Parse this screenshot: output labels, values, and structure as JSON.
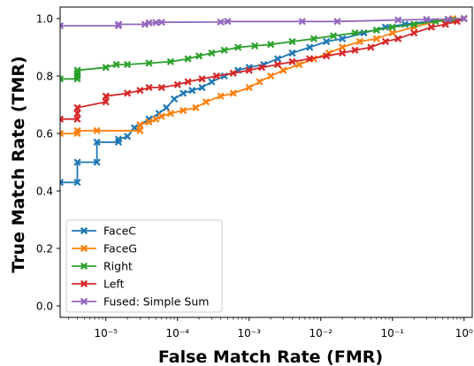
{
  "chart_data": {
    "type": "line",
    "xlabel": "False Match Rate (FMR)",
    "ylabel": "True Match Rate (TMR)",
    "xscale": "log",
    "xlim": [
      2.3e-06,
      1.3
    ],
    "ylim": [
      -0.04,
      1.04
    ],
    "x_ticks": [
      1e-05,
      0.0001,
      0.001,
      0.01,
      0.1,
      1
    ],
    "x_tick_labels": [
      "10⁻⁵",
      "10⁻⁴",
      "10⁻³",
      "10⁻²",
      "10⁻¹",
      "10⁰"
    ],
    "y_ticks": [
      0.0,
      0.2,
      0.4,
      0.6,
      0.8,
      1.0
    ],
    "y_tick_labels": [
      "0.0",
      "0.2",
      "0.4",
      "0.6",
      "0.8",
      "1.0"
    ],
    "grid": false,
    "legend_position": "lower-left",
    "marker": "x",
    "series": [
      {
        "name": "FaceC",
        "color": "#1f77b4",
        "points": [
          [
            2.3e-06,
            0.43
          ],
          [
            4e-06,
            0.43
          ],
          [
            4e-06,
            0.5
          ],
          [
            7.5e-06,
            0.5
          ],
          [
            7.5e-06,
            0.57
          ],
          [
            1.5e-05,
            0.57
          ],
          [
            1.5e-05,
            0.58
          ],
          [
            2e-05,
            0.59
          ],
          [
            2.5e-05,
            0.62
          ],
          [
            3e-05,
            0.63
          ],
          [
            4e-05,
            0.65
          ],
          [
            5.5e-05,
            0.67
          ],
          [
            7e-05,
            0.69
          ],
          [
            9e-05,
            0.72
          ],
          [
            0.00012,
            0.74
          ],
          [
            0.00016,
            0.75
          ],
          [
            0.00022,
            0.76
          ],
          [
            0.0003,
            0.78
          ],
          [
            0.00045,
            0.8
          ],
          [
            0.0007,
            0.82
          ],
          [
            0.001,
            0.83
          ],
          [
            0.0016,
            0.84
          ],
          [
            0.0025,
            0.86
          ],
          [
            0.004,
            0.88
          ],
          [
            0.007,
            0.9
          ],
          [
            0.012,
            0.92
          ],
          [
            0.02,
            0.93
          ],
          [
            0.04,
            0.95
          ],
          [
            0.08,
            0.97
          ],
          [
            0.15,
            0.98
          ],
          [
            0.3,
            0.99
          ],
          [
            0.6,
            0.995
          ],
          [
            1.0,
            1.0
          ]
        ]
      },
      {
        "name": "FaceG",
        "color": "#ff7f0e",
        "points": [
          [
            2.3e-06,
            0.6
          ],
          [
            4e-06,
            0.6
          ],
          [
            4e-06,
            0.61
          ],
          [
            7.5e-06,
            0.61
          ],
          [
            3e-05,
            0.61
          ],
          [
            3e-05,
            0.63
          ],
          [
            4e-05,
            0.64
          ],
          [
            5e-05,
            0.65
          ],
          [
            6e-05,
            0.66
          ],
          [
            8e-05,
            0.67
          ],
          [
            0.00012,
            0.68
          ],
          [
            0.00018,
            0.69
          ],
          [
            0.00025,
            0.71
          ],
          [
            0.0004,
            0.73
          ],
          [
            0.0006,
            0.74
          ],
          [
            0.001,
            0.76
          ],
          [
            0.0014,
            0.78
          ],
          [
            0.002,
            0.8
          ],
          [
            0.003,
            0.82
          ],
          [
            0.005,
            0.84
          ],
          [
            0.008,
            0.86
          ],
          [
            0.013,
            0.88
          ],
          [
            0.02,
            0.9
          ],
          [
            0.035,
            0.92
          ],
          [
            0.06,
            0.93
          ],
          [
            0.1,
            0.95
          ],
          [
            0.2,
            0.97
          ],
          [
            0.4,
            0.99
          ],
          [
            0.7,
            1.0
          ],
          [
            1.0,
            1.0
          ]
        ]
      },
      {
        "name": "Right",
        "color": "#2ca02c",
        "points": [
          [
            2.3e-06,
            0.79
          ],
          [
            4e-06,
            0.79
          ],
          [
            4e-06,
            0.8
          ],
          [
            4e-06,
            0.81
          ],
          [
            4e-06,
            0.82
          ],
          [
            1e-05,
            0.83
          ],
          [
            1.4e-05,
            0.84
          ],
          [
            2e-05,
            0.84
          ],
          [
            4e-05,
            0.845
          ],
          [
            8e-05,
            0.85
          ],
          [
            0.00014,
            0.86
          ],
          [
            0.0002,
            0.87
          ],
          [
            0.0003,
            0.88
          ],
          [
            0.00045,
            0.89
          ],
          [
            0.0007,
            0.9
          ],
          [
            0.0012,
            0.905
          ],
          [
            0.002,
            0.91
          ],
          [
            0.004,
            0.92
          ],
          [
            0.008,
            0.93
          ],
          [
            0.015,
            0.94
          ],
          [
            0.03,
            0.95
          ],
          [
            0.06,
            0.96
          ],
          [
            0.1,
            0.97
          ],
          [
            0.2,
            0.98
          ],
          [
            0.4,
            0.99
          ],
          [
            0.7,
            0.995
          ],
          [
            1.0,
            1.0
          ]
        ]
      },
      {
        "name": "Left",
        "color": "#d62728",
        "points": [
          [
            2.3e-06,
            0.65
          ],
          [
            4e-06,
            0.65
          ],
          [
            4e-06,
            0.67
          ],
          [
            4e-06,
            0.69
          ],
          [
            1e-05,
            0.71
          ],
          [
            1e-05,
            0.73
          ],
          [
            2e-05,
            0.74
          ],
          [
            3e-05,
            0.75
          ],
          [
            4e-05,
            0.76
          ],
          [
            6e-05,
            0.76
          ],
          [
            0.0001,
            0.77
          ],
          [
            0.00014,
            0.78
          ],
          [
            0.00022,
            0.79
          ],
          [
            0.00035,
            0.8
          ],
          [
            0.0006,
            0.81
          ],
          [
            0.001,
            0.82
          ],
          [
            0.0015,
            0.83
          ],
          [
            0.0025,
            0.84
          ],
          [
            0.004,
            0.85
          ],
          [
            0.007,
            0.86
          ],
          [
            0.012,
            0.87
          ],
          [
            0.02,
            0.88
          ],
          [
            0.03,
            0.89
          ],
          [
            0.05,
            0.9
          ],
          [
            0.08,
            0.92
          ],
          [
            0.12,
            0.93
          ],
          [
            0.2,
            0.95
          ],
          [
            0.35,
            0.97
          ],
          [
            0.55,
            0.98
          ],
          [
            0.8,
            0.99
          ],
          [
            1.0,
            1.0
          ]
        ]
      },
      {
        "name": "Fused: Simple Sum",
        "color": "#9467bd",
        "points": [
          [
            2.3e-06,
            0.975
          ],
          [
            1.5e-05,
            0.975
          ],
          [
            1.5e-05,
            0.98
          ],
          [
            3.5e-05,
            0.98
          ],
          [
            4e-05,
            0.985
          ],
          [
            5e-05,
            0.986
          ],
          [
            6e-05,
            0.987
          ],
          [
            0.0004,
            0.988
          ],
          [
            0.0005,
            0.99
          ],
          [
            0.0055,
            0.99
          ],
          [
            0.017,
            0.99
          ],
          [
            0.12,
            0.995
          ],
          [
            0.3,
            0.997
          ],
          [
            0.6,
            0.998
          ],
          [
            1.0,
            1.0
          ]
        ]
      }
    ]
  }
}
